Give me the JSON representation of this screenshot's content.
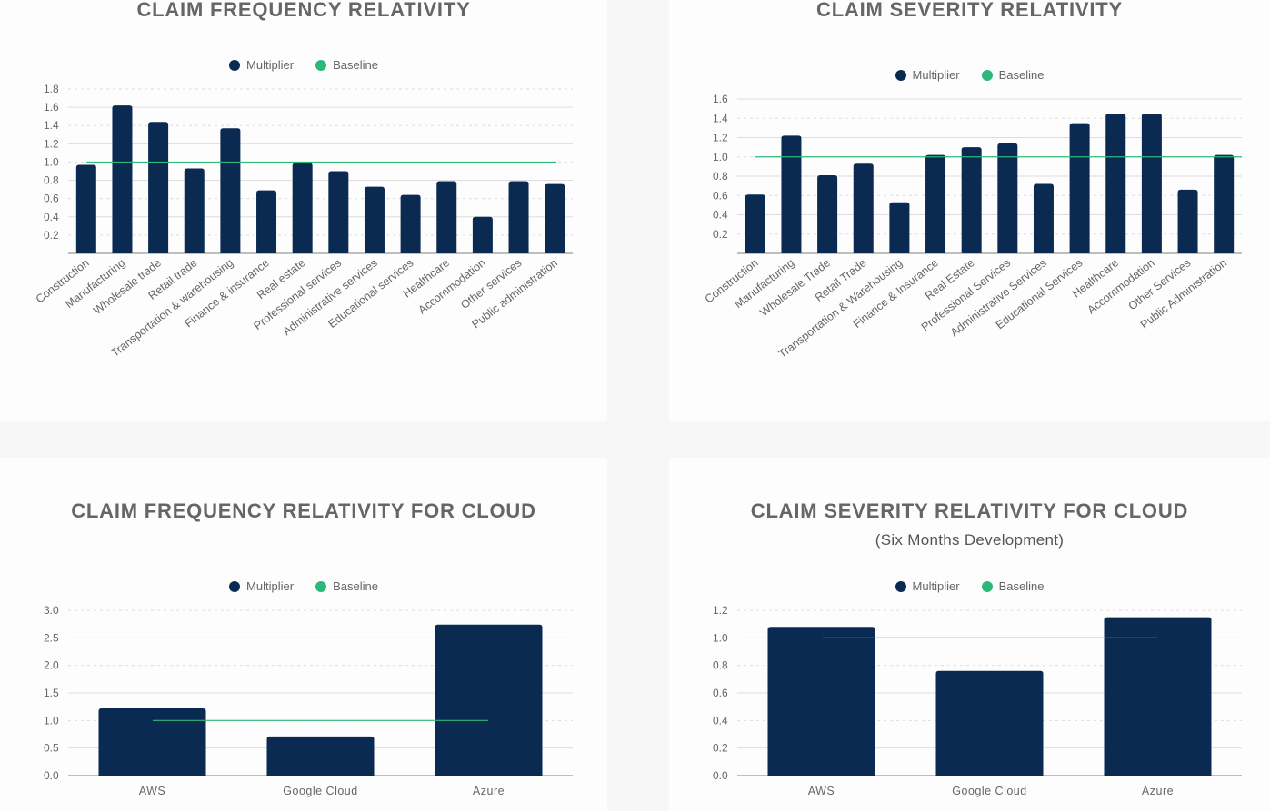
{
  "colors": {
    "multiplier": "#0b2a52",
    "baseline": "#2db87a",
    "grid": "#dddddd",
    "axis": "#aaaaaa",
    "text": "#666666"
  },
  "legend": {
    "multiplier": "Multiplier",
    "baseline": "Baseline"
  },
  "chart_data": [
    {
      "type": "bar",
      "title": "CLAIM FREQUENCY RELATIVITY",
      "subtitle": "",
      "categories": [
        "Construction",
        "Manufacturing",
        "Wholesale trade",
        "Retail trade",
        "Transportation & warehousing",
        "Finance & insurance",
        "Real estate",
        "Professional services",
        "Administrative services",
        "Educational services",
        "Healthcare",
        "Accommodation",
        "Other services",
        "Public administration"
      ],
      "series": [
        {
          "name": "Multiplier",
          "values": [
            0.97,
            1.62,
            1.44,
            0.93,
            1.37,
            0.69,
            0.99,
            0.9,
            0.73,
            0.64,
            0.79,
            0.4,
            0.79,
            0.76
          ]
        },
        {
          "name": "Baseline",
          "values": [
            1,
            1,
            1,
            1,
            1,
            1,
            1,
            1,
            1,
            1,
            1,
            1,
            1,
            1
          ]
        }
      ],
      "yticks": [
        "0.2",
        "0.4",
        "0.6",
        "0.8",
        "1.0",
        "1.2",
        "1.4",
        "1.6",
        "1.8"
      ],
      "ylim": [
        0,
        1.8
      ],
      "grid": true,
      "legend_position": "top"
    },
    {
      "type": "bar",
      "title": "CLAIM SEVERITY RELATIVITY",
      "subtitle": "",
      "categories": [
        "Construction",
        "Manufacturing",
        "Wholesale Trade",
        "Retail Trade",
        "Transportation & Warehousing",
        "Finance & Insurance",
        "Real Estate",
        "Professional Services",
        "Administrative Services",
        "Educational Services",
        "Healthcare",
        "Accommodation",
        "Other Services",
        "Public Administration"
      ],
      "series": [
        {
          "name": "Multiplier",
          "values": [
            0.61,
            1.22,
            0.81,
            0.93,
            0.53,
            1.02,
            1.1,
            1.14,
            0.72,
            1.35,
            1.45,
            1.45,
            0.66,
            1.02
          ]
        },
        {
          "name": "Baseline",
          "values": [
            1,
            1,
            1,
            1,
            1,
            1,
            1,
            1,
            1,
            1,
            1,
            1,
            1,
            1
          ]
        }
      ],
      "yticks": [
        "0.2",
        "0.4",
        "0.6",
        "0.8",
        "1.0",
        "1.2",
        "1.4",
        "1.6"
      ],
      "ylim": [
        0,
        1.6
      ],
      "grid": true,
      "legend_position": "top"
    },
    {
      "type": "bar",
      "title": "CLAIM FREQUENCY RELATIVITY FOR CLOUD",
      "subtitle": "",
      "categories": [
        "AWS",
        "Google Cloud",
        "Azure"
      ],
      "series": [
        {
          "name": "Multiplier",
          "values": [
            1.22,
            0.71,
            2.74
          ]
        },
        {
          "name": "Baseline",
          "values": [
            1,
            1,
            1
          ]
        }
      ],
      "yticks": [
        "0.0",
        "0.5",
        "1.0",
        "1.5",
        "2.0",
        "2.5",
        "3.0"
      ],
      "ylim": [
        0,
        3.0
      ],
      "grid": true,
      "legend_position": "top"
    },
    {
      "type": "bar",
      "title": "CLAIM SEVERITY RELATIVITY FOR CLOUD",
      "subtitle": "(Six Months Development)",
      "categories": [
        "AWS",
        "Google Cloud",
        "Azure"
      ],
      "series": [
        {
          "name": "Multiplier",
          "values": [
            1.08,
            0.76,
            1.15
          ]
        },
        {
          "name": "Baseline",
          "values": [
            1,
            1,
            1
          ]
        }
      ],
      "yticks": [
        "0.0",
        "0.2",
        "0.4",
        "0.6",
        "0.8",
        "1.0",
        "1.2"
      ],
      "ylim": [
        0,
        1.2
      ],
      "grid": true,
      "legend_position": "top"
    }
  ]
}
